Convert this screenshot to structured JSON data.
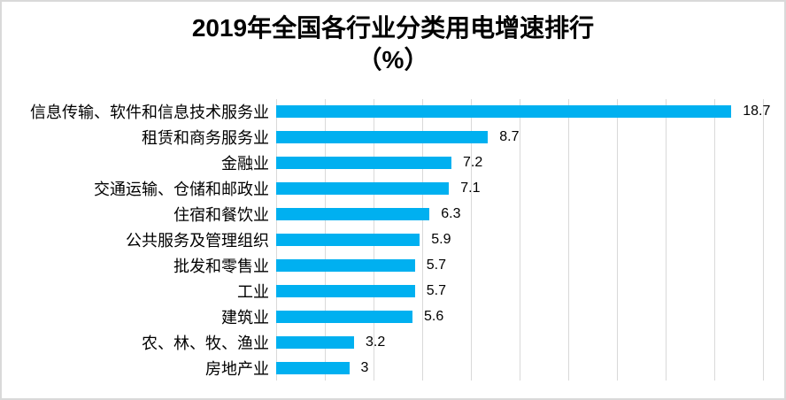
{
  "title": {
    "line1": "2019年全国各行业分类用电增速排行",
    "line2": "（%）"
  },
  "chart_data": {
    "type": "bar",
    "orientation": "horizontal",
    "title": "2019年全国各行业分类用电增速排行（%）",
    "categories": [
      "信息传输、软件和信息技术服务业",
      "租赁和商务服务业",
      "金融业",
      "交通运输、仓储和邮政业",
      "住宿和餐饮业",
      "公共服务及管理组织",
      "批发和零售业",
      "工业",
      "建筑业",
      "农、林、牧、渔业",
      "房地产业"
    ],
    "values": [
      18.7,
      8.7,
      7.2,
      7.1,
      6.3,
      5.9,
      5.7,
      5.7,
      5.6,
      3.2,
      3
    ],
    "value_labels": [
      "18.7",
      "8.7",
      "7.2",
      "7.1",
      "6.3",
      "5.9",
      "5.7",
      "5.7",
      "5.6",
      "3.2",
      "3"
    ],
    "xlabel": "",
    "ylabel": "",
    "xlim": [
      0,
      20
    ],
    "gridline_interval": 2,
    "grid": true,
    "legend": false,
    "data_labels": "outside-end"
  },
  "colors": {
    "bar": "#00B0F0",
    "gridline": "#D9D9D9",
    "border": "#D9D9D9",
    "text": "#000000",
    "background": "#FFFFFF"
  }
}
